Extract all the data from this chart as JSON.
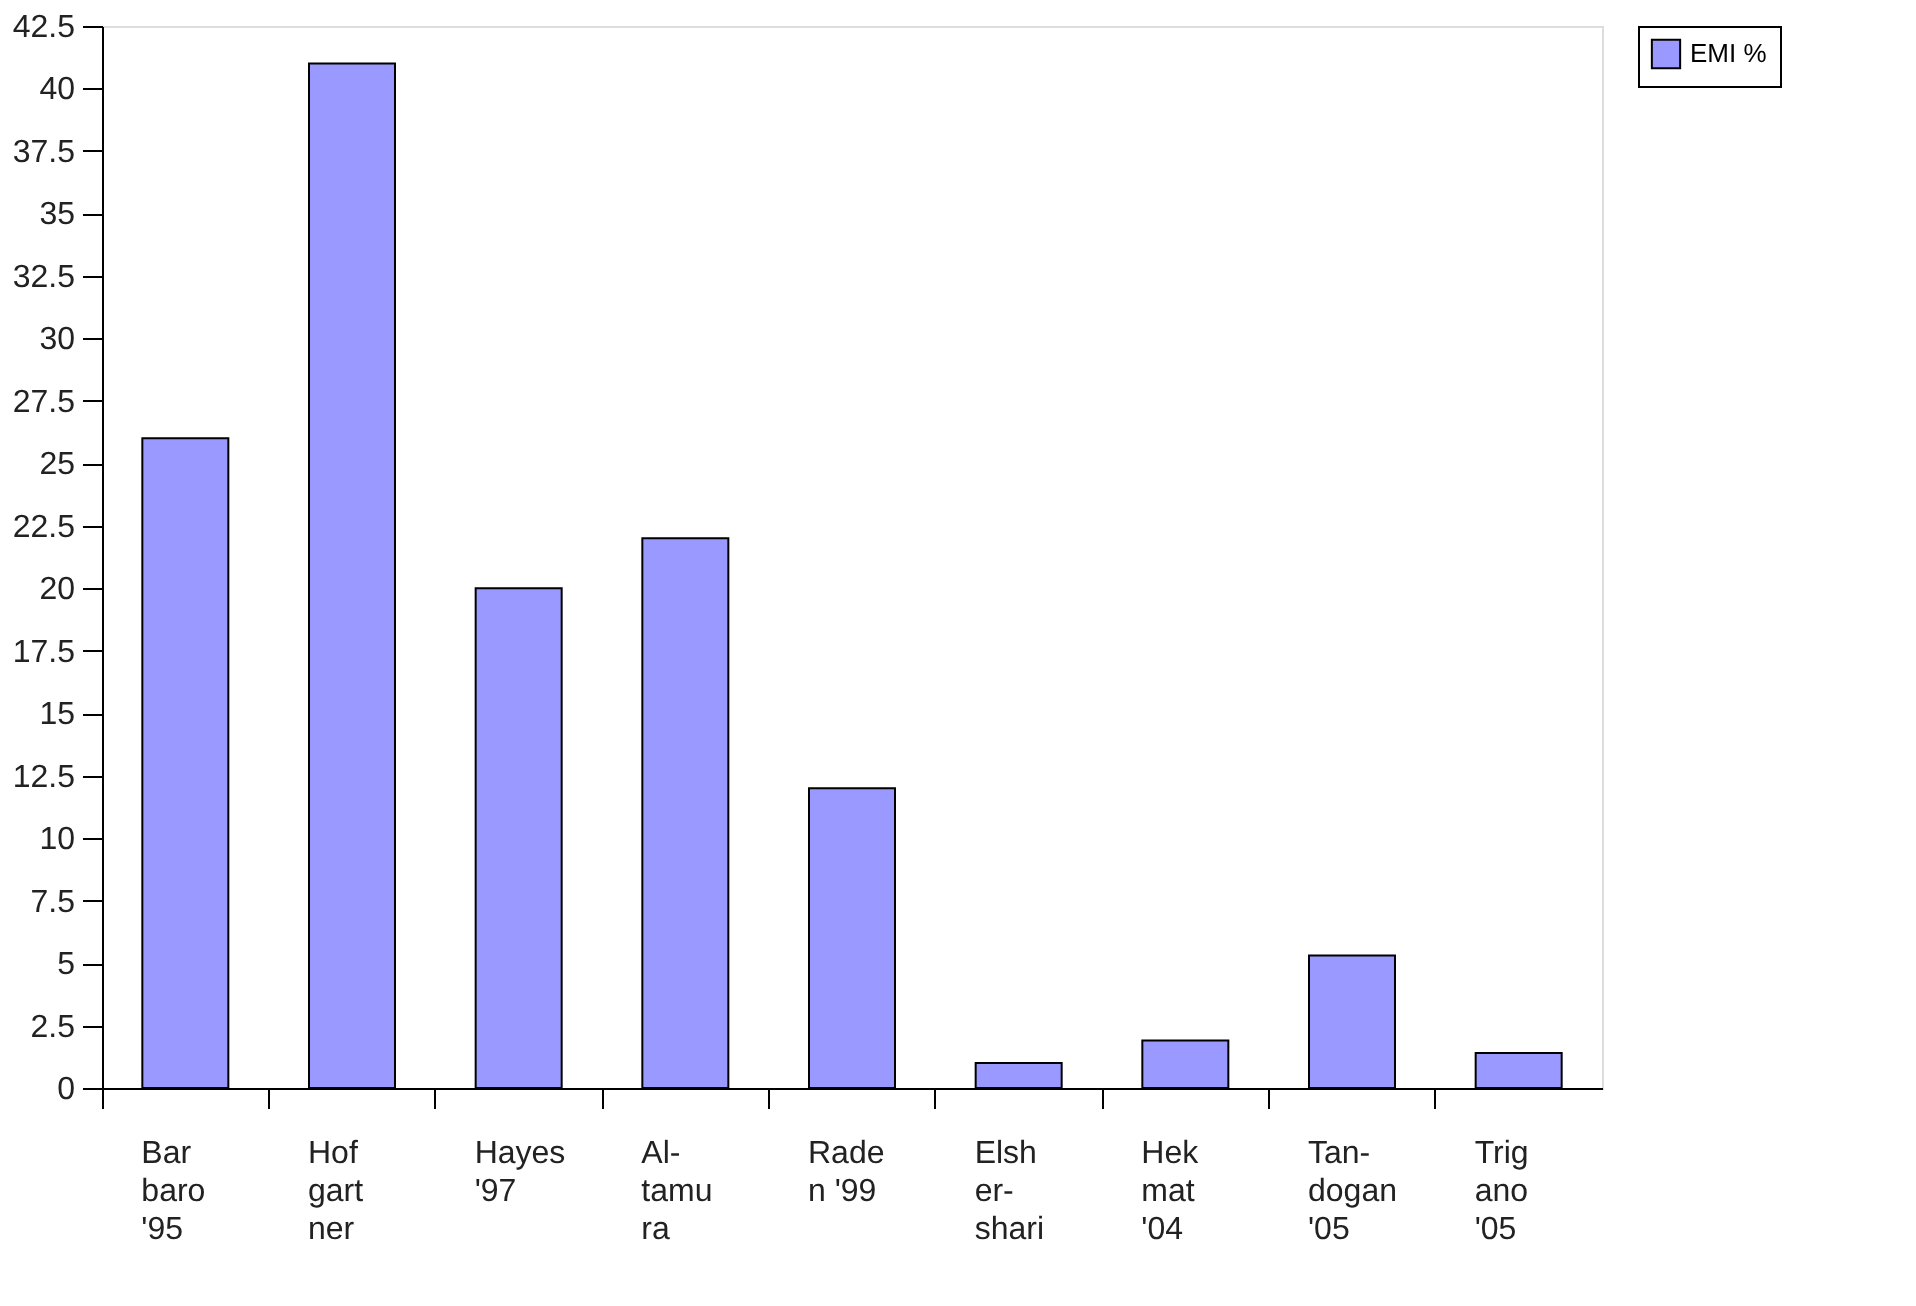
{
  "chart_data": {
    "type": "bar",
    "categories": [
      "Bar\nbaro\n'95",
      "Hof\ngart\nner",
      "Hayes\n'97",
      "Al-\ntamu\nra",
      "Rade\nn '99",
      "Elsh\ner-\nshari",
      "Hek\nmat\n'04",
      "Tan-\ndogan\n'05",
      "Trig\nano\n'05"
    ],
    "series": [
      {
        "name": "EMI %",
        "color": "#9999ff",
        "values": [
          26,
          41,
          20,
          22,
          12,
          1,
          1.9,
          5.3,
          1.4
        ]
      }
    ],
    "ylim": [
      0,
      42.5
    ],
    "yticks": [
      0,
      2.5,
      5,
      7.5,
      10,
      12.5,
      15,
      17.5,
      20,
      22.5,
      25,
      27.5,
      30,
      32.5,
      35,
      37.5,
      40,
      42.5
    ],
    "grid": false,
    "legend": "right"
  }
}
